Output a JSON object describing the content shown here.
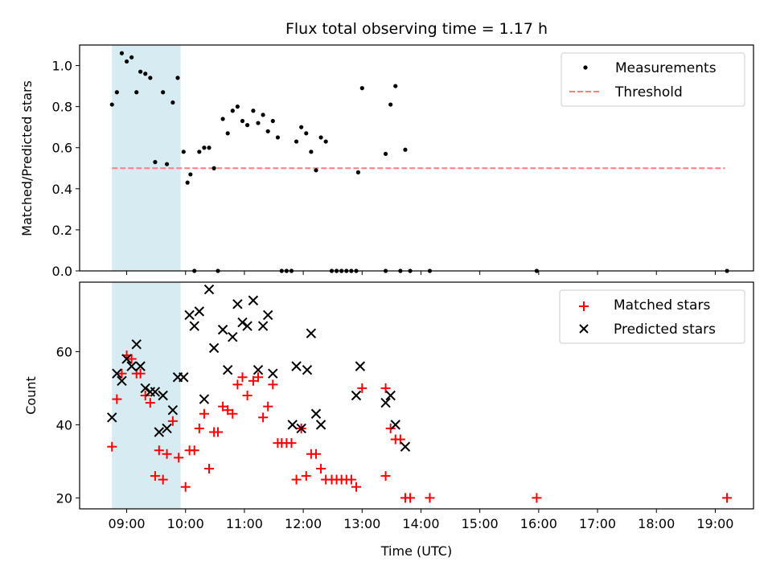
{
  "figure": {
    "title": "Flux total observing time = 1.17 h",
    "xlabel": "Time (UTC)",
    "colors": {
      "shade": "#add8e6",
      "measurements": "#000000",
      "threshold": "#ff7f7f",
      "matched": "#ff0000",
      "predicted": "#000000"
    }
  },
  "chart_data": [
    {
      "type": "scatter",
      "panel": "top",
      "ylabel": "Matched/Predicted stars",
      "xlim": [
        "08:12",
        "19:39"
      ],
      "ylim": [
        0,
        1.1
      ],
      "x_ticks": [
        "09:00",
        "10:00",
        "11:00",
        "12:00",
        "13:00",
        "14:00",
        "15:00",
        "16:00",
        "17:00",
        "18:00",
        "19:00"
      ],
      "y_ticks": [
        "0.0",
        "0.2",
        "0.4",
        "0.6",
        "0.8",
        "1.0"
      ],
      "shaded_span": [
        "08:45",
        "09:55"
      ],
      "legend": {
        "placement": "upper right",
        "entries": [
          "Measurements",
          "Threshold"
        ]
      },
      "threshold": {
        "name": "Threshold",
        "value": 0.5,
        "x": [
          "08:45",
          "19:10"
        ],
        "style": "dashed"
      },
      "series": [
        {
          "name": "Measurements",
          "marker": "dot",
          "points": [
            [
              "08:45",
              0.81
            ],
            [
              "08:50",
              0.87
            ],
            [
              "08:55",
              1.06
            ],
            [
              "09:00",
              1.02
            ],
            [
              "09:05",
              1.04
            ],
            [
              "09:10",
              0.87
            ],
            [
              "09:14",
              0.97
            ],
            [
              "09:19",
              0.96
            ],
            [
              "09:24",
              0.94
            ],
            [
              "09:29",
              0.53
            ],
            [
              "09:37",
              0.87
            ],
            [
              "09:41",
              0.52
            ],
            [
              "09:47",
              0.82
            ],
            [
              "09:52",
              0.94
            ],
            [
              "09:58",
              0.58
            ],
            [
              "10:02",
              0.43
            ],
            [
              "10:05",
              0.47
            ],
            [
              "10:09",
              0.0
            ],
            [
              "10:14",
              0.58
            ],
            [
              "10:19",
              0.6
            ],
            [
              "10:24",
              0.6
            ],
            [
              "10:29",
              0.5
            ],
            [
              "10:33",
              0.0
            ],
            [
              "10:38",
              0.74
            ],
            [
              "10:43",
              0.67
            ],
            [
              "10:48",
              0.78
            ],
            [
              "10:53",
              0.8
            ],
            [
              "10:58",
              0.73
            ],
            [
              "11:03",
              0.71
            ],
            [
              "11:09",
              0.78
            ],
            [
              "11:14",
              0.72
            ],
            [
              "11:19",
              0.76
            ],
            [
              "11:24",
              0.68
            ],
            [
              "11:29",
              0.73
            ],
            [
              "11:34",
              0.65
            ],
            [
              "11:38",
              0.0
            ],
            [
              "11:43",
              0.0
            ],
            [
              "11:48",
              0.0
            ],
            [
              "11:53",
              0.63
            ],
            [
              "11:58",
              0.7
            ],
            [
              "12:03",
              0.67
            ],
            [
              "12:08",
              0.58
            ],
            [
              "12:13",
              0.49
            ],
            [
              "12:18",
              0.65
            ],
            [
              "12:23",
              0.63
            ],
            [
              "12:29",
              0.0
            ],
            [
              "12:34",
              0.0
            ],
            [
              "12:39",
              0.0
            ],
            [
              "12:44",
              0.0
            ],
            [
              "12:49",
              0.0
            ],
            [
              "12:54",
              0.0
            ],
            [
              "12:56",
              0.48
            ],
            [
              "13:00",
              0.89
            ],
            [
              "13:24",
              0.57
            ],
            [
              "13:24",
              0.0
            ],
            [
              "13:29",
              0.81
            ],
            [
              "13:34",
              0.9
            ],
            [
              "13:39",
              0.0
            ],
            [
              "13:44",
              0.59
            ],
            [
              "13:49",
              0.0
            ],
            [
              "14:09",
              0.0
            ],
            [
              "15:58",
              0.0
            ],
            [
              "19:12",
              0.0
            ]
          ]
        }
      ]
    },
    {
      "type": "scatter",
      "panel": "bottom",
      "ylabel": "Count",
      "xlabel": "Time (UTC)",
      "xlim": [
        "08:12",
        "19:39"
      ],
      "ylim": [
        17,
        79
      ],
      "x_ticks": [
        "09:00",
        "10:00",
        "11:00",
        "12:00",
        "13:00",
        "14:00",
        "15:00",
        "16:00",
        "17:00",
        "18:00",
        "19:00"
      ],
      "y_ticks": [
        "20",
        "40",
        "60"
      ],
      "shaded_span": [
        "08:45",
        "09:55"
      ],
      "legend": {
        "placement": "upper right",
        "entries": [
          "Matched stars",
          "Predicted stars"
        ]
      },
      "series": [
        {
          "name": "Matched stars",
          "marker": "plus",
          "points": [
            [
              "08:45",
              34
            ],
            [
              "08:50",
              47
            ],
            [
              "08:55",
              54
            ],
            [
              "09:00",
              59
            ],
            [
              "09:05",
              58
            ],
            [
              "09:10",
              54
            ],
            [
              "09:14",
              54
            ],
            [
              "09:19",
              48
            ],
            [
              "09:24",
              46
            ],
            [
              "09:29",
              26
            ],
            [
              "09:33",
              33
            ],
            [
              "09:37",
              25
            ],
            [
              "09:41",
              32
            ],
            [
              "09:47",
              41
            ],
            [
              "09:53",
              31
            ],
            [
              "10:00",
              23
            ],
            [
              "10:04",
              33
            ],
            [
              "10:09",
              33
            ],
            [
              "10:14",
              39
            ],
            [
              "10:19",
              43
            ],
            [
              "10:24",
              28
            ],
            [
              "10:29",
              38
            ],
            [
              "10:33",
              38
            ],
            [
              "10:38",
              45
            ],
            [
              "10:43",
              44
            ],
            [
              "10:48",
              43
            ],
            [
              "10:53",
              51
            ],
            [
              "10:58",
              53
            ],
            [
              "11:03",
              48
            ],
            [
              "11:09",
              52
            ],
            [
              "11:14",
              53
            ],
            [
              "11:19",
              42
            ],
            [
              "11:24",
              45
            ],
            [
              "11:29",
              51
            ],
            [
              "11:34",
              35
            ],
            [
              "11:38",
              35
            ],
            [
              "11:43",
              35
            ],
            [
              "11:48",
              35
            ],
            [
              "11:53",
              25
            ],
            [
              "11:58",
              39
            ],
            [
              "12:03",
              26
            ],
            [
              "12:08",
              32
            ],
            [
              "12:13",
              32
            ],
            [
              "12:18",
              28
            ],
            [
              "12:23",
              25
            ],
            [
              "12:29",
              25
            ],
            [
              "12:34",
              25
            ],
            [
              "12:39",
              25
            ],
            [
              "12:44",
              25
            ],
            [
              "12:49",
              25
            ],
            [
              "12:54",
              23
            ],
            [
              "13:00",
              50
            ],
            [
              "13:24",
              26
            ],
            [
              "13:24",
              50
            ],
            [
              "13:29",
              39
            ],
            [
              "13:34",
              36
            ],
            [
              "13:39",
              36
            ],
            [
              "13:44",
              20
            ],
            [
              "13:49",
              20
            ],
            [
              "14:09",
              20
            ],
            [
              "15:58",
              20
            ],
            [
              "19:12",
              20
            ]
          ]
        },
        {
          "name": "Predicted stars",
          "marker": "x",
          "points": [
            [
              "08:45",
              42
            ],
            [
              "08:50",
              54
            ],
            [
              "08:55",
              52
            ],
            [
              "09:00",
              58
            ],
            [
              "09:05",
              56
            ],
            [
              "09:10",
              62
            ],
            [
              "09:14",
              56
            ],
            [
              "09:19",
              50
            ],
            [
              "09:24",
              49
            ],
            [
              "09:29",
              49
            ],
            [
              "09:33",
              38
            ],
            [
              "09:37",
              48
            ],
            [
              "09:41",
              39
            ],
            [
              "09:47",
              44
            ],
            [
              "09:52",
              53
            ],
            [
              "09:58",
              53
            ],
            [
              "10:04",
              70
            ],
            [
              "10:09",
              67
            ],
            [
              "10:14",
              71
            ],
            [
              "10:19",
              47
            ],
            [
              "10:24",
              77
            ],
            [
              "10:29",
              61
            ],
            [
              "10:38",
              66
            ],
            [
              "10:43",
              55
            ],
            [
              "10:48",
              64
            ],
            [
              "10:53",
              73
            ],
            [
              "10:58",
              68
            ],
            [
              "11:03",
              67
            ],
            [
              "11:09",
              74
            ],
            [
              "11:14",
              55
            ],
            [
              "11:19",
              67
            ],
            [
              "11:24",
              70
            ],
            [
              "11:29",
              54
            ],
            [
              "11:49",
              40
            ],
            [
              "11:53",
              56
            ],
            [
              "11:58",
              39
            ],
            [
              "12:04",
              55
            ],
            [
              "12:08",
              65
            ],
            [
              "12:13",
              43
            ],
            [
              "12:18",
              40
            ],
            [
              "12:54",
              48
            ],
            [
              "12:58",
              56
            ],
            [
              "13:24",
              46
            ],
            [
              "13:29",
              48
            ],
            [
              "13:34",
              40
            ],
            [
              "13:44",
              34
            ]
          ]
        }
      ]
    }
  ]
}
